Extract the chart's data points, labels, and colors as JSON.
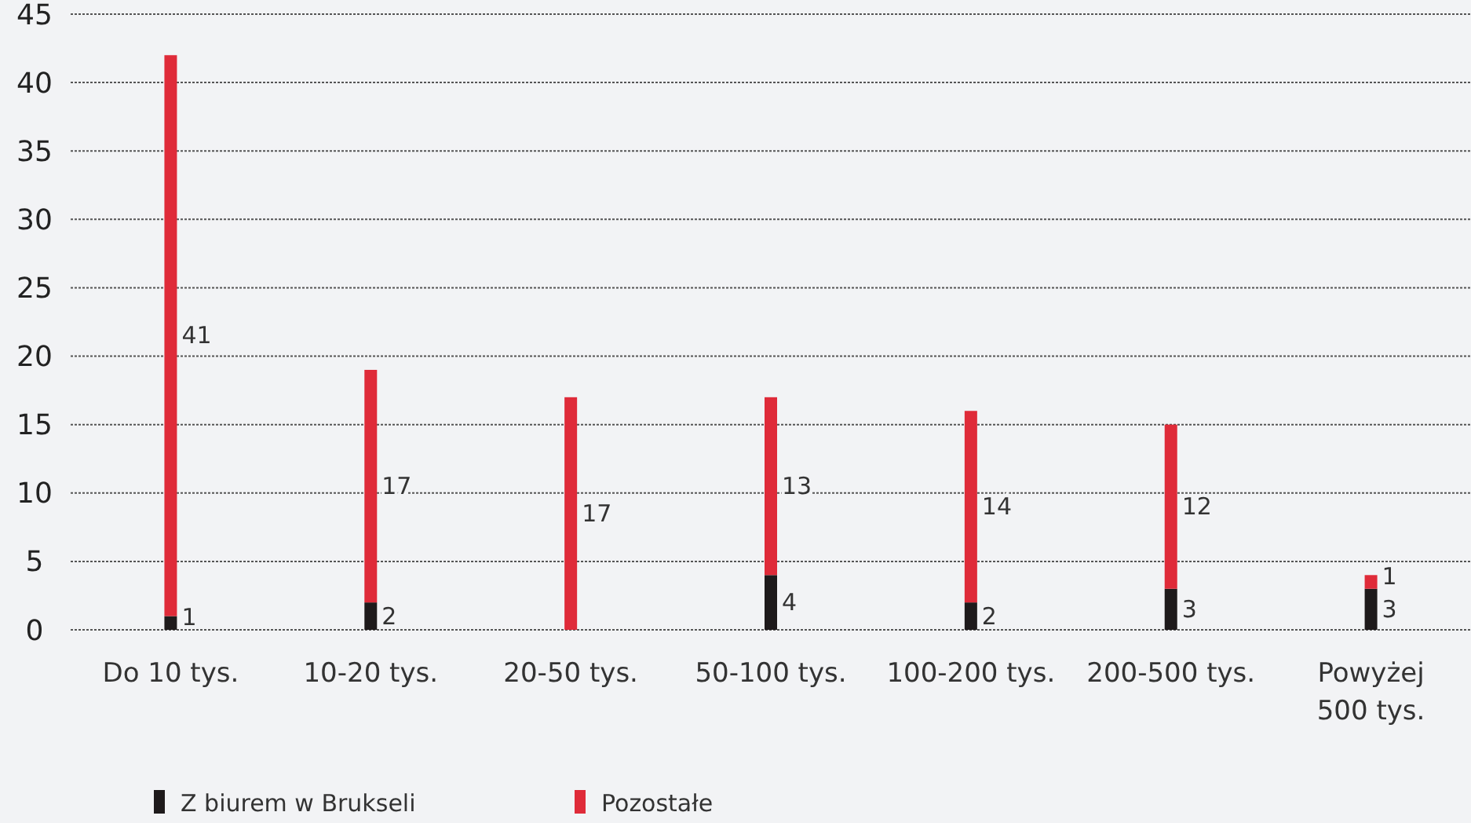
{
  "chart_data": {
    "type": "bar",
    "stacked": true,
    "categories": [
      "Do 10 tys.",
      "10-20 tys.",
      "20-50 tys.",
      "50-100 tys.",
      "100-200 tys.",
      "200-500 tys.",
      "Powyżej 500 tys."
    ],
    "series": [
      {
        "name": "Z biurem w Brukseli",
        "color": "#1e1a1b",
        "values": [
          1,
          2,
          0,
          4,
          2,
          3,
          3
        ],
        "value_labels": [
          "1",
          "2",
          null,
          "4",
          "2",
          "3",
          "3"
        ]
      },
      {
        "name": "Pozostałe",
        "color": "#df2b39",
        "values": [
          41,
          17,
          17,
          13,
          14,
          12,
          1
        ],
        "value_labels": [
          "41",
          "17",
          "17",
          "13",
          "14",
          "12",
          "1"
        ]
      }
    ],
    "ylim": [
      0,
      45
    ],
    "yticks": [
      0,
      5,
      10,
      15,
      20,
      25,
      30,
      35,
      40,
      45
    ],
    "grid": "y",
    "legend": "bottom"
  }
}
